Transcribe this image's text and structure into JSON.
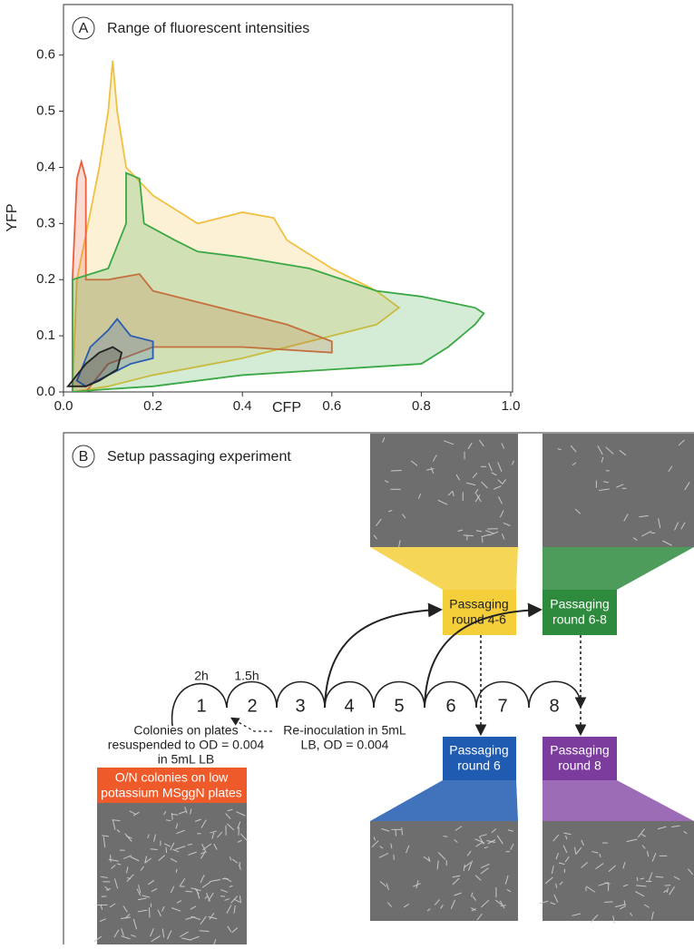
{
  "chart_data": {
    "type": "region",
    "panel_label": "A",
    "title": "Range of fluorescent intensities",
    "x_label": "CFP",
    "y_label": "YFP",
    "xlim": [
      0,
      1
    ],
    "xticks": [
      {
        "value": 0,
        "label": "0.0"
      },
      0.2,
      0.4,
      0.6,
      0.8,
      {
        "value": 1,
        "label": "1.0"
      }
    ],
    "ylim": [
      0,
      0.69
    ],
    "yticks": [
      {
        "value": 0,
        "label": "0.0"
      },
      0.1,
      0.2,
      0.3,
      0.4,
      0.5,
      0.6
    ],
    "series": [
      {
        "color": "#f0c040",
        "x": [
          0.02,
          0.03,
          0.08,
          0.1,
          0.11,
          0.12,
          0.14,
          0.2,
          0.3,
          0.4,
          0.47,
          0.5,
          0.6,
          0.7,
          0.75,
          0.7,
          0.6,
          0.4,
          0.2,
          0.1
        ],
        "values": [
          0,
          0.2,
          0.4,
          0.5,
          0.59,
          0.5,
          0.4,
          0.35,
          0.3,
          0.32,
          0.31,
          0.27,
          0.22,
          0.18,
          0.15,
          0.12,
          0.1,
          0.06,
          0.03,
          0.01
        ]
      },
      {
        "color": "#e8603c",
        "x": [
          0.02,
          0.02,
          0.03,
          0.04,
          0.05,
          0.05,
          0.1,
          0.17,
          0.2,
          0.3,
          0.4,
          0.5,
          0.6,
          0.6,
          0.4,
          0.2,
          0.1,
          0.05
        ],
        "values": [
          0,
          0.2,
          0.38,
          0.41,
          0.38,
          0.2,
          0.2,
          0.21,
          0.18,
          0.16,
          0.14,
          0.12,
          0.09,
          0.07,
          0.08,
          0.08,
          0.05,
          0
        ]
      },
      {
        "color": "#3aa845",
        "x": [
          0.02,
          0.02,
          0.1,
          0.14,
          0.14,
          0.17,
          0.18,
          0.25,
          0.3,
          0.4,
          0.55,
          0.7,
          0.8,
          0.86,
          0.92,
          0.94,
          0.92,
          0.86,
          0.8,
          0.6,
          0.4,
          0.2,
          0.1
        ],
        "values": [
          0,
          0.2,
          0.22,
          0.3,
          0.39,
          0.38,
          0.3,
          0.27,
          0.25,
          0.24,
          0.22,
          0.18,
          0.17,
          0.16,
          0.15,
          0.14,
          0.12,
          0.08,
          0.05,
          0.04,
          0.03,
          0.01,
          0.005
        ]
      },
      {
        "color": "#2a5db0",
        "x": [
          0.03,
          0.06,
          0.1,
          0.12,
          0.15,
          0.2,
          0.2,
          0.15,
          0.1,
          0.05
        ],
        "values": [
          0.02,
          0.08,
          0.11,
          0.13,
          0.1,
          0.09,
          0.06,
          0.05,
          0.03,
          0.01
        ]
      },
      {
        "color": "#222222",
        "x": [
          0.01,
          0.05,
          0.08,
          0.11,
          0.13,
          0.12,
          0.1,
          0.08,
          0.05
        ],
        "values": [
          0.01,
          0.05,
          0.07,
          0.08,
          0.07,
          0.04,
          0.03,
          0.02,
          0.01
        ]
      }
    ]
  },
  "panel_b": {
    "label": "B",
    "title": "Setup passaging experiment",
    "rounds": [
      "1",
      "2",
      "3",
      "4",
      "5",
      "6",
      "7",
      "8"
    ],
    "durations": [
      "2h",
      "1.5h"
    ],
    "resuspend_note": [
      "Colonies on plates",
      "resuspended to OD = 0.004",
      "in 5mL LB"
    ],
    "reinoculation_note": [
      "Re-inoculation in 5mL",
      "LB, OD = 0.004"
    ],
    "start_box": [
      "O/N colonies on low",
      "potassium MSggN plates"
    ],
    "boxes": [
      [
        "Passaging",
        "round 4-6"
      ],
      [
        "Passaging",
        "round 6-8"
      ],
      [
        "Passaging",
        "round 6"
      ],
      [
        "Passaging",
        "round 8"
      ]
    ]
  }
}
